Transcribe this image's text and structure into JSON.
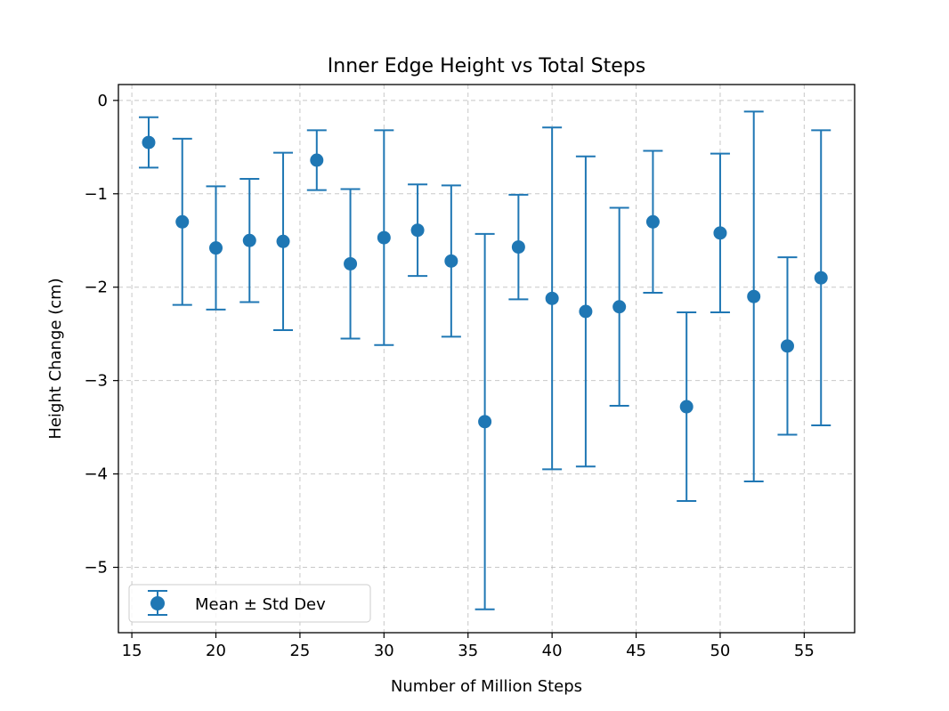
{
  "chart_data": {
    "type": "scatter",
    "title": "Inner Edge Height vs Total Steps",
    "xlabel": "Number of Million Steps",
    "ylabel": "Height Change (cm)",
    "xlim": [
      14.2,
      58
    ],
    "ylim": [
      -5.7,
      0.17
    ],
    "xticks": [
      15,
      20,
      25,
      30,
      35,
      40,
      45,
      50,
      55
    ],
    "yticks": [
      0,
      -1,
      -2,
      -3,
      -4,
      -5
    ],
    "grid": true,
    "legend_position": "lower-left",
    "color": "#1f77b4",
    "series": [
      {
        "name": "Mean ± Std Dev",
        "x": [
          16,
          18,
          20,
          22,
          24,
          26,
          28,
          30,
          32,
          34,
          36,
          38,
          40,
          42,
          44,
          46,
          48,
          50,
          52,
          54,
          56
        ],
        "y": [
          -0.45,
          -1.3,
          -1.58,
          -1.5,
          -1.51,
          -0.64,
          -1.75,
          -1.47,
          -1.39,
          -1.72,
          -3.44,
          -1.57,
          -2.12,
          -2.26,
          -2.21,
          -1.3,
          -3.28,
          -1.42,
          -2.1,
          -2.63,
          -1.9
        ],
        "error": [
          0.27,
          0.89,
          0.66,
          0.66,
          0.95,
          0.32,
          0.8,
          1.15,
          0.49,
          0.81,
          2.01,
          0.56,
          1.83,
          1.66,
          1.06,
          0.76,
          1.01,
          0.85,
          1.98,
          0.95,
          1.58
        ]
      }
    ]
  }
}
